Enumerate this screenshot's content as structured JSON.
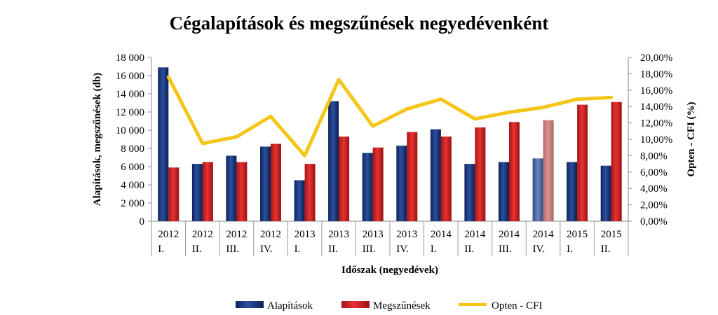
{
  "chart_data": {
    "type": "bar",
    "title": "Cégalapítások és megszűnések negyedévenként",
    "xlabel": "Időszak (negyedévek)",
    "ylabel": "Alapítások, megszűnések (db)",
    "y2label": "Opten - CFI (%)",
    "ylim": [
      0,
      18000
    ],
    "y2lim": [
      0,
      20
    ],
    "yticks": [
      "0",
      "2 000",
      "4 000",
      "6 000",
      "8 000",
      "10 000",
      "12 000",
      "14 000",
      "16 000",
      "18 000"
    ],
    "y2ticks": [
      "0,00%",
      "2,00%",
      "4,00%",
      "6,00%",
      "8,00%",
      "10,00%",
      "12,00%",
      "14,00%",
      "16,00%",
      "18,00%",
      "20,00%"
    ],
    "categories": [
      [
        "2012",
        "I."
      ],
      [
        "2012",
        "II."
      ],
      [
        "2012",
        "III."
      ],
      [
        "2012",
        "IV."
      ],
      [
        "2013",
        "I."
      ],
      [
        "2013",
        "II."
      ],
      [
        "2013",
        "III."
      ],
      [
        "2013",
        "IV."
      ],
      [
        "2014",
        "I."
      ],
      [
        "2014",
        "II."
      ],
      [
        "2014",
        "III."
      ],
      [
        "2014",
        "IV."
      ],
      [
        "2015",
        "I."
      ],
      [
        "2015",
        "II."
      ]
    ],
    "series": [
      {
        "name": "Alapítások",
        "type": "bar",
        "axis": "left",
        "color": "#1f3a7a",
        "values": [
          16900,
          6300,
          7200,
          8200,
          4500,
          13200,
          7500,
          8300,
          10100,
          6300,
          6500,
          6900,
          6500,
          6100
        ]
      },
      {
        "name": "Megszűnések",
        "type": "bar",
        "axis": "left",
        "color": "#cc1f1f",
        "values": [
          5900,
          6500,
          6500,
          8500,
          6300,
          9300,
          8100,
          9800,
          9300,
          10300,
          10900,
          11100,
          12800,
          13100
        ]
      },
      {
        "name": "Opten - CFI",
        "type": "line",
        "axis": "right",
        "color": "#f5c518",
        "values": [
          17.6,
          9.5,
          10.3,
          12.8,
          8.0,
          17.3,
          11.6,
          13.7,
          14.9,
          12.5,
          13.3,
          13.9,
          14.9,
          15.1
        ]
      }
    ],
    "highlight_category_index": 11,
    "grid": false,
    "legend_position": "bottom"
  }
}
